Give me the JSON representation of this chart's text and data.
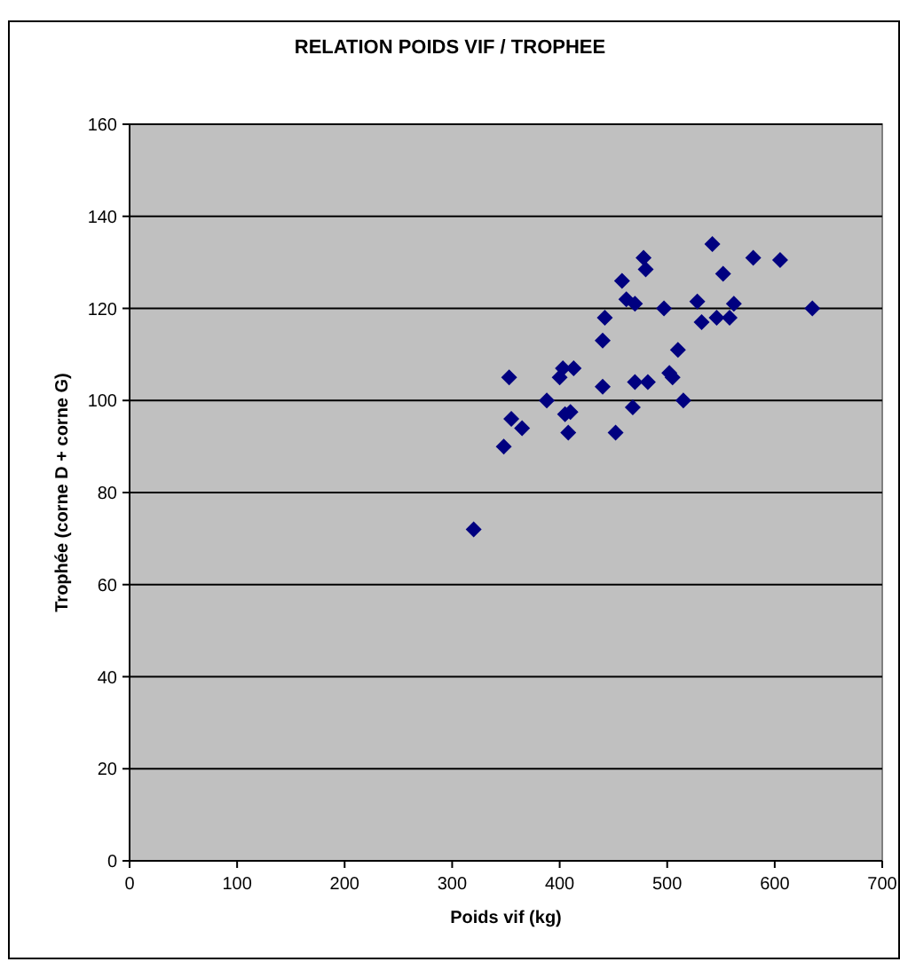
{
  "chart_data": {
    "type": "scatter",
    "title": "RELATION POIDS VIF / TROPHEE",
    "xlabel": "Poids vif (kg)",
    "ylabel": "Trophée (corne D + corne G)",
    "xlim": [
      0,
      700
    ],
    "ylim": [
      0,
      160
    ],
    "xticks": [
      0,
      100,
      200,
      300,
      400,
      500,
      600,
      700
    ],
    "yticks": [
      0,
      20,
      40,
      60,
      80,
      100,
      120,
      140,
      160
    ],
    "grid": "y",
    "marker": "diamond",
    "series": [
      {
        "color": "#000080",
        "x": [
          320,
          348,
          353,
          355,
          365,
          388,
          400,
          403,
          405,
          408,
          410,
          413,
          440,
          440,
          442,
          452,
          458,
          462,
          468,
          470,
          470,
          478,
          480,
          482,
          497,
          502,
          505,
          510,
          515,
          528,
          532,
          542,
          546,
          552,
          558,
          562,
          580,
          605,
          635
        ],
        "values": [
          72,
          90,
          105,
          96,
          94,
          100,
          105,
          107,
          97,
          93,
          97.5,
          107,
          103,
          113,
          118,
          93,
          126,
          122,
          98.5,
          104,
          121,
          131,
          128.5,
          104,
          120,
          106,
          105,
          111,
          100,
          121.5,
          117,
          134,
          118,
          127.5,
          118,
          121,
          131,
          130.5,
          120
        ]
      }
    ]
  }
}
